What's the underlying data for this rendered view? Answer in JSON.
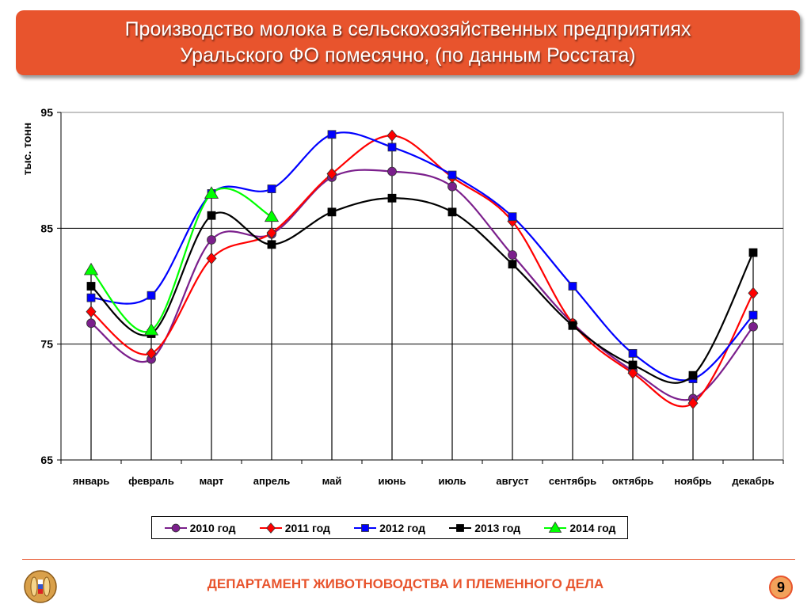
{
  "slide": {
    "title_line1": "Производство молока в сельскохозяйственных предприятиях",
    "title_line2": "Уральского ФО помесячно, (по данным Росстата)",
    "footer": "ДЕПАРТАМЕНТ ЖИВОТНОВОДСТВА И ПЛЕМЕННОГО ДЕЛА",
    "page_number": "9",
    "logo_icon": "wheat-emblem-icon",
    "accent_color": "#e8542d"
  },
  "chart_data": {
    "type": "line",
    "title": "",
    "xlabel": "",
    "ylabel": "тыс. тонн",
    "ylim": [
      65,
      95
    ],
    "yticks": [
      65,
      75,
      85,
      95
    ],
    "grid": true,
    "legend_position": "bottom",
    "categories": [
      "январь",
      "февраль",
      "март",
      "апрель",
      "май",
      "июнь",
      "июль",
      "август",
      "сентябрь",
      "октябрь",
      "ноябрь",
      "декабрь"
    ],
    "series": [
      {
        "name": "2010 год",
        "color": "#7b1f8c",
        "marker": "circle",
        "values": [
          76.8,
          73.7,
          84.0,
          84.5,
          89.4,
          89.9,
          88.6,
          82.7,
          76.8,
          72.7,
          70.3,
          76.5
        ]
      },
      {
        "name": "2011 год",
        "color": "#ff0000",
        "marker": "diamond",
        "values": [
          77.8,
          74.2,
          82.4,
          84.6,
          89.7,
          93.0,
          89.4,
          85.6,
          76.8,
          72.5,
          69.9,
          79.4
        ]
      },
      {
        "name": "2012 год",
        "color": "#0000ff",
        "marker": "square",
        "values": [
          79.0,
          79.2,
          88.0,
          88.4,
          93.1,
          92.0,
          89.6,
          86.0,
          80.0,
          74.2,
          72.0,
          77.5
        ]
      },
      {
        "name": "2013 год",
        "color": "#000000",
        "marker": "square",
        "values": [
          80.0,
          75.9,
          86.1,
          83.6,
          86.4,
          87.6,
          86.4,
          81.9,
          76.6,
          73.2,
          72.3,
          82.9
        ]
      },
      {
        "name": "2014 год",
        "color": "#00ff00",
        "marker": "triangle",
        "values": [
          81.4,
          76.2,
          88.0,
          86.0,
          null,
          null,
          null,
          null,
          null,
          null,
          null,
          null
        ]
      }
    ]
  }
}
